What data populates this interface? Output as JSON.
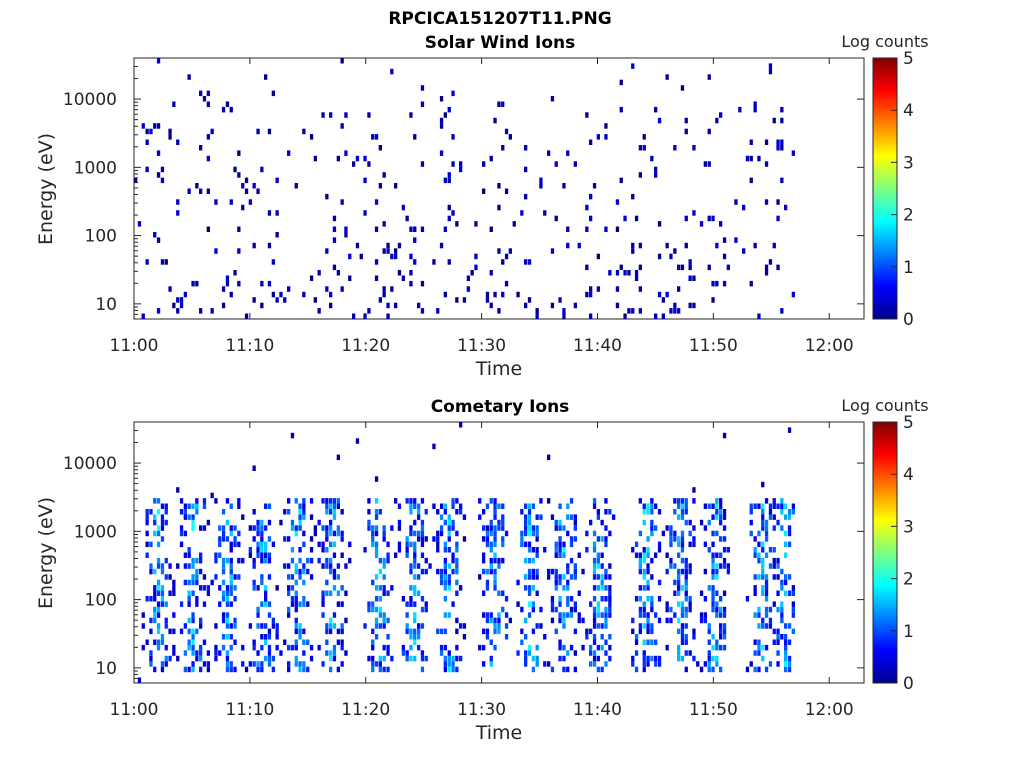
{
  "figure": {
    "title": "RPCICA151207T11.PNG"
  },
  "chart_data": [
    {
      "type": "heatmap",
      "title": "Solar Wind Ions",
      "xlabel": "Time",
      "ylabel": "Energy (eV)",
      "x_ticks": [
        "11:00",
        "11:10",
        "11:20",
        "11:30",
        "11:40",
        "11:50",
        "12:00"
      ],
      "xlim": [
        "11:00",
        "12:03"
      ],
      "y_scale": "log",
      "y_ticks": [
        "10",
        "100",
        "1000",
        "10000"
      ],
      "ylim": [
        6,
        40000
      ],
      "data_extent_x": [
        "11:00",
        "11:57"
      ],
      "colorbar": {
        "label": "Log counts",
        "ticks": [
          "0",
          "1",
          "2",
          "3",
          "4",
          "5"
        ],
        "range": [
          0,
          5
        ],
        "colormap": "jet"
      },
      "pattern": "sparse scattered low counts (log ~0-0.5) across 5 eV - 30 keV, denser below 100 eV",
      "colors": {
        "low": "#00008f",
        "axis": "#262626"
      }
    },
    {
      "type": "heatmap",
      "title": "Cometary Ions",
      "xlabel": "Time",
      "ylabel": "Energy (eV)",
      "x_ticks": [
        "11:00",
        "11:10",
        "11:20",
        "11:30",
        "11:40",
        "11:50",
        "12:00"
      ],
      "xlim": [
        "11:00",
        "12:03"
      ],
      "y_scale": "log",
      "y_ticks": [
        "10",
        "100",
        "1000",
        "10000"
      ],
      "ylim": [
        6,
        40000
      ],
      "data_extent_x": [
        "11:00",
        "11:57"
      ],
      "colorbar": {
        "label": "Log counts",
        "ticks": [
          "0",
          "1",
          "2",
          "3",
          "4",
          "5"
        ],
        "range": [
          0,
          5
        ],
        "colormap": "jet"
      },
      "burst_times": [
        "11:02",
        "11:05",
        "11:08",
        "11:11",
        "11:14",
        "11:17",
        "11:21",
        "11:24",
        "11:27",
        "11:31",
        "11:34",
        "11:37",
        "11:40",
        "11:44",
        "11:47",
        "11:50",
        "11:54",
        "11:56"
      ],
      "burst_energy_range_eV": [
        10,
        2000
      ],
      "burst_peak_log_counts": 2,
      "colors": {
        "low": "#00008f",
        "axis": "#262626"
      }
    }
  ]
}
